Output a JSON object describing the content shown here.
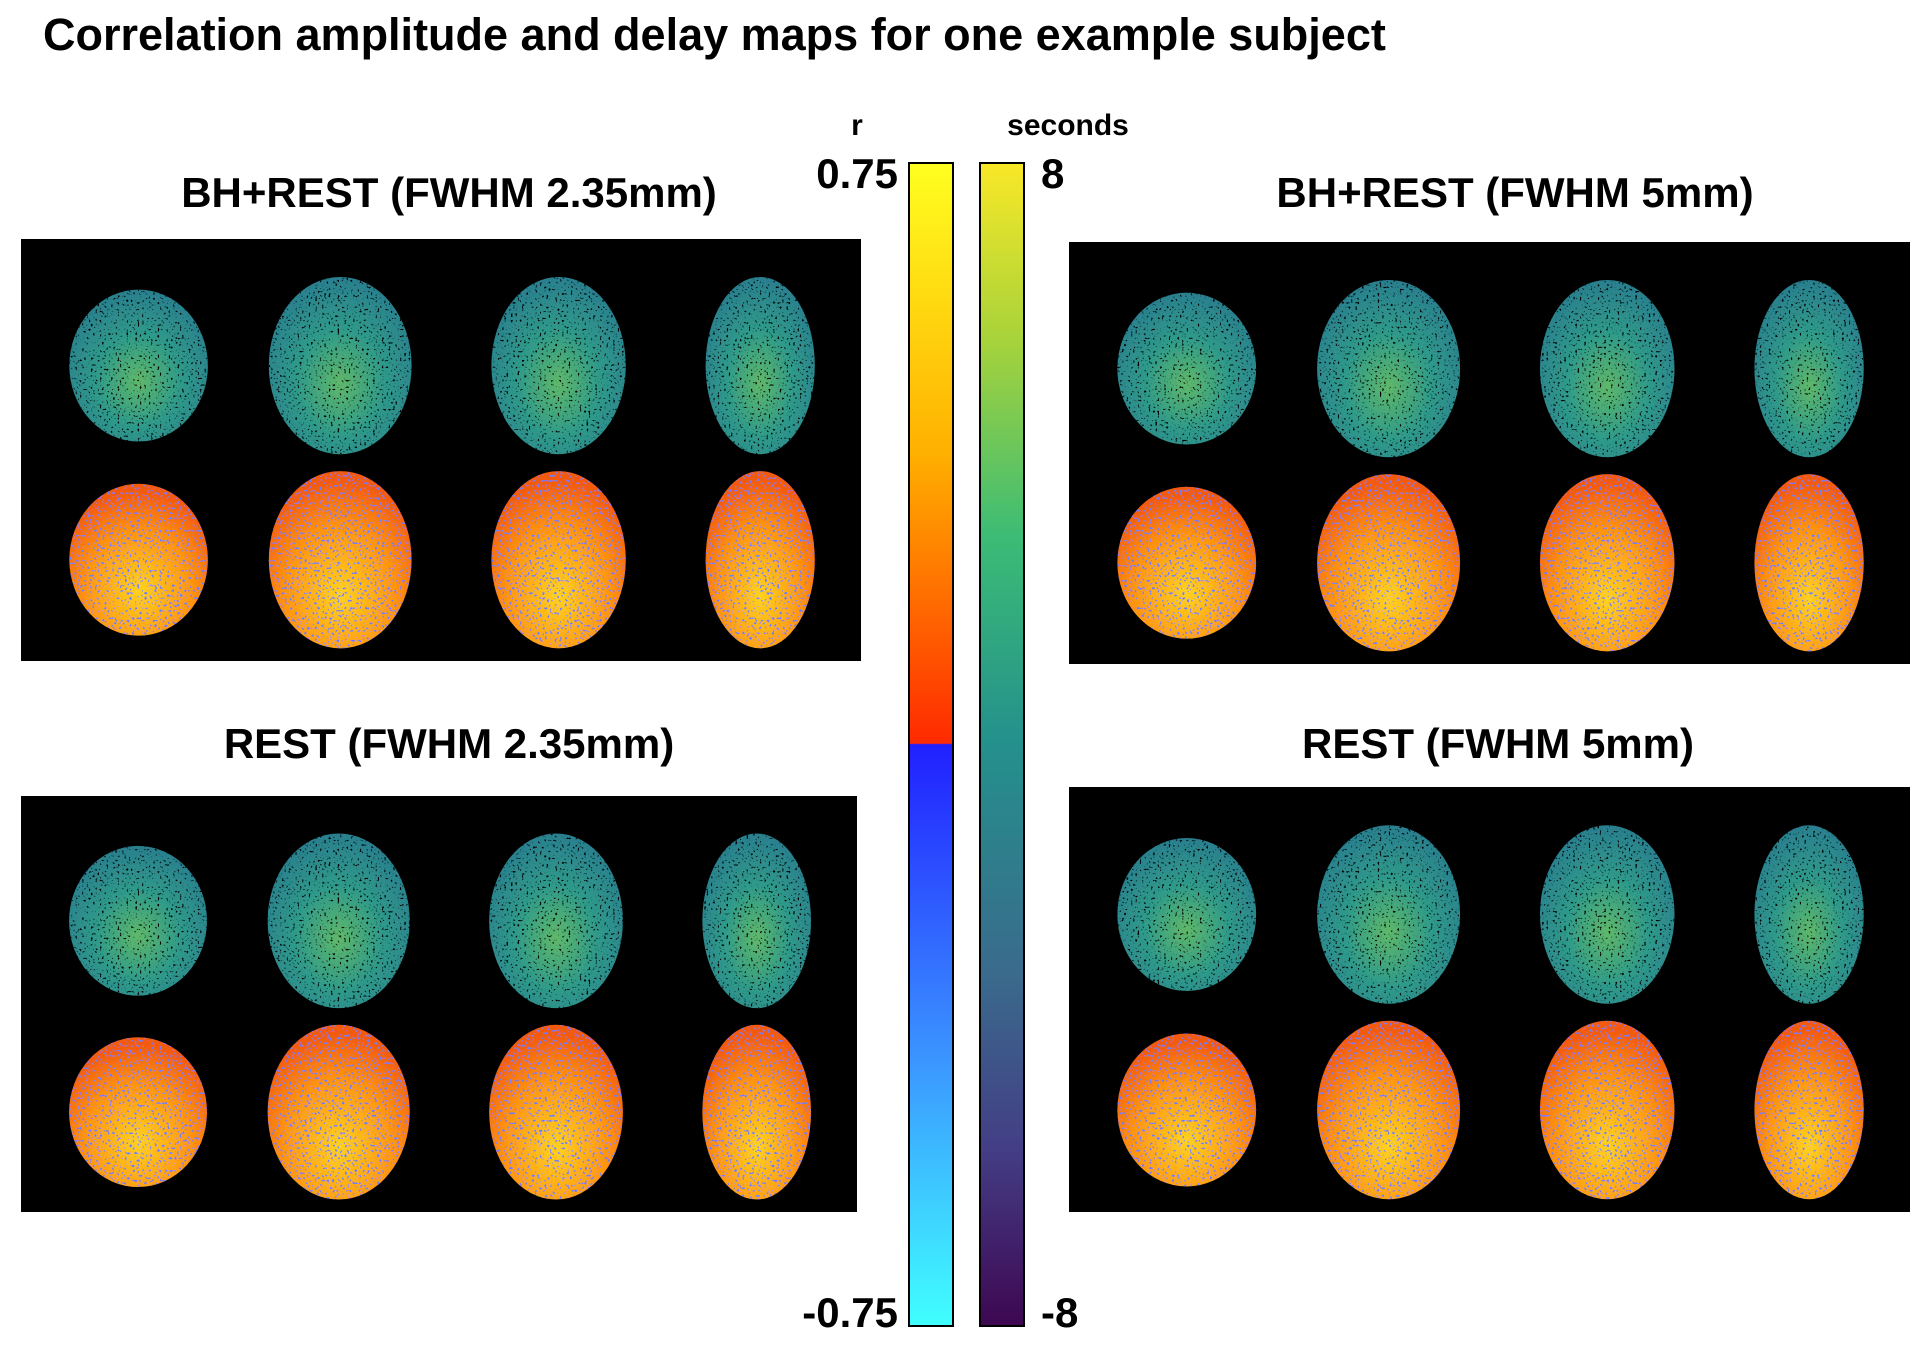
{
  "title": "Correlation amplitude and delay maps for one example subject",
  "panels": [
    {
      "title": "BH+REST (FWHM 2.35mm)"
    },
    {
      "title": "REST (FWHM 2.35mm)"
    },
    {
      "title": "BH+REST (FWHM 5mm)"
    },
    {
      "title": "REST (FWHM 5mm)"
    }
  ],
  "colorbars": [
    {
      "label": "r",
      "ticks": [
        0.75,
        -0.75
      ]
    },
    {
      "label": "seconds",
      "ticks": [
        8,
        -8
      ]
    }
  ]
}
